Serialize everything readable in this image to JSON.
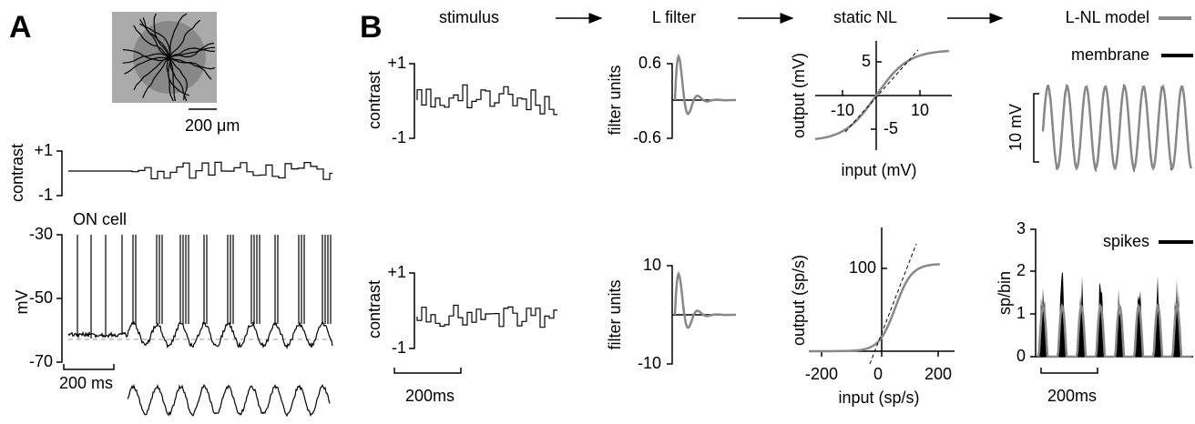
{
  "panel_a": {
    "label": "A",
    "scale_bar_space": "200 μm",
    "stimulus_axis": {
      "label": "contrast",
      "ticks": [
        "+1",
        "-1"
      ]
    },
    "cell_label": "ON cell",
    "voltage_axis": {
      "label": "mV",
      "ticks": [
        "-30",
        "-50",
        "-70"
      ]
    },
    "scale_bar_time": "200 ms"
  },
  "panel_b": {
    "label": "B",
    "headers": [
      "stimulus",
      "L filter",
      "static NL",
      "L-NL model"
    ],
    "legend": {
      "model": "L-NL model",
      "membrane": "membrane",
      "spikes": "spikes"
    },
    "stimulus_axis": {
      "label": "contrast",
      "ticks": [
        "+1",
        "-1"
      ]
    },
    "scale_bar_time": "200ms",
    "filter_top": {
      "label": "filter units",
      "ticks": [
        "0.6",
        "-0.6"
      ]
    },
    "filter_bottom": {
      "label": "filter units",
      "ticks": [
        "10",
        "-10"
      ]
    },
    "nl_top": {
      "ylabel": "output (mV)",
      "xlabel": "input (mV)",
      "xticks": [
        "-10",
        "10"
      ],
      "yticks": [
        "5",
        "-5"
      ]
    },
    "nl_bottom": {
      "ylabel": "output (sp/s)",
      "xlabel": "input (sp/s)",
      "xticks": [
        "-200",
        "0",
        "200"
      ],
      "yticks": [
        "100"
      ]
    },
    "membrane_scale": "10 mV",
    "spike_axis": {
      "label": "sp/bin",
      "ticks": [
        "3",
        "2",
        "1",
        "0"
      ]
    },
    "scale_bar_time_right": "200ms"
  }
}
